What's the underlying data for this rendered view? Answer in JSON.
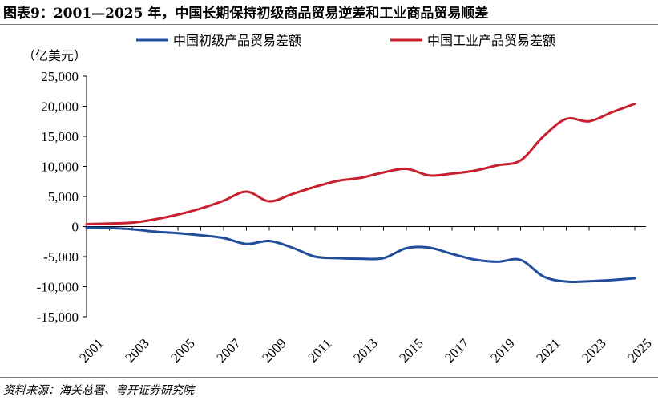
{
  "title": "图表9：2001—2025 年，中国长期保持初级商品贸易逆差和工业商品贸易顺差",
  "source": "资料来源：海关总署、粤开证券研究院",
  "unit_label": "（亿美元）",
  "colors": {
    "primary": "#1f4e9b",
    "industrial": "#c8202f",
    "axis": "#000000"
  },
  "chart_data": {
    "type": "line",
    "x": [
      2001,
      2002,
      2003,
      2004,
      2005,
      2006,
      2007,
      2008,
      2009,
      2010,
      2011,
      2012,
      2013,
      2014,
      2015,
      2016,
      2017,
      2018,
      2019,
      2020,
      2021,
      2022,
      2023,
      2024,
      2025
    ],
    "x_tick_labels": [
      "2001",
      "2003",
      "2005",
      "2007",
      "2009",
      "2011",
      "2013",
      "2015",
      "2017",
      "2019",
      "2021",
      "2023",
      "2025"
    ],
    "y_tick_labels": [
      "25,000",
      "20,000",
      "15,000",
      "10,000",
      "5,000",
      "0",
      "-5,000",
      "-10,000",
      "-15,000"
    ],
    "ylim": [
      -15000,
      25000
    ],
    "series": [
      {
        "name": "中国初级产品贸易差额",
        "values": [
          -200,
          -250,
          -450,
          -850,
          -1100,
          -1450,
          -1900,
          -2900,
          -2400,
          -3500,
          -5000,
          -5250,
          -5350,
          -5250,
          -3600,
          -3500,
          -4550,
          -5500,
          -5850,
          -5550,
          -8300,
          -9150,
          -9100,
          -8900,
          -8600
        ]
      },
      {
        "name": "中国工业产品贸易差额",
        "values": [
          400,
          500,
          650,
          1200,
          2000,
          3000,
          4300,
          5800,
          4200,
          5400,
          6600,
          7600,
          8100,
          9000,
          9600,
          8500,
          8800,
          9300,
          10200,
          11000,
          15000,
          17900,
          17500,
          19000,
          20400
        ]
      }
    ],
    "legend_position": "top",
    "grid": false
  }
}
